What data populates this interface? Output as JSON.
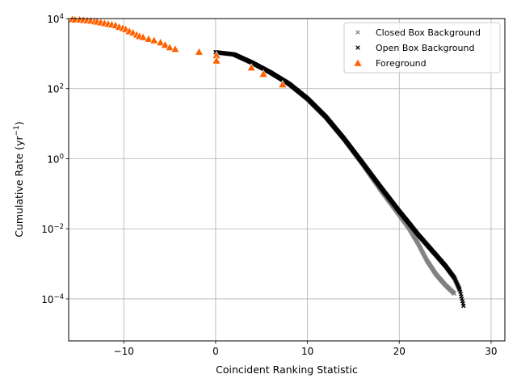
{
  "chart_data": {
    "type": "scatter",
    "title": "",
    "xlabel": "Coincident Ranking Statistic",
    "ylabel_main": "Cumulative Rate (yr",
    "ylabel_sup": "−1",
    "ylabel_close": ")",
    "xlim": [
      -16,
      31.5
    ],
    "ylog": true,
    "ylim_log10": [
      -5.2,
      4
    ],
    "grid": true,
    "legend_position": "top-right",
    "x_ticks": [
      {
        "value": -10,
        "label": "−10"
      },
      {
        "value": 0,
        "label": "0"
      },
      {
        "value": 10,
        "label": "10"
      },
      {
        "value": 20,
        "label": "20"
      },
      {
        "value": 30,
        "label": "30"
      }
    ],
    "y_ticks": [
      {
        "exp": 4,
        "base": "10",
        "sup": "4"
      },
      {
        "exp": 2,
        "base": "10",
        "sup": "2"
      },
      {
        "exp": 0,
        "base": "10",
        "sup": "0"
      },
      {
        "exp": -2,
        "base": "10",
        "sup": "−2"
      },
      {
        "exp": -4,
        "base": "10",
        "sup": "−4"
      }
    ],
    "series": [
      {
        "name": "Closed Box Background",
        "marker": "x",
        "color": "#808080",
        "curve": [
          [
            0,
            3.03
          ],
          [
            2,
            2.97
          ],
          [
            4,
            2.73
          ],
          [
            6,
            2.45
          ],
          [
            8,
            2.13
          ],
          [
            10,
            1.7
          ],
          [
            12,
            1.18
          ],
          [
            14,
            0.55
          ],
          [
            16,
            -0.15
          ],
          [
            18,
            -0.9
          ],
          [
            20,
            -1.6
          ],
          [
            21,
            -1.96
          ],
          [
            22,
            -2.4
          ],
          [
            23,
            -2.9
          ],
          [
            24,
            -3.3
          ],
          [
            25,
            -3.6
          ],
          [
            26,
            -3.85
          ]
        ]
      },
      {
        "name": "Open Box Background",
        "marker": "x",
        "color": "#000000",
        "curve": [
          [
            0,
            3.04
          ],
          [
            2,
            2.98
          ],
          [
            4,
            2.74
          ],
          [
            6,
            2.46
          ],
          [
            8,
            2.14
          ],
          [
            10,
            1.72
          ],
          [
            12,
            1.2
          ],
          [
            14,
            0.57
          ],
          [
            16,
            -0.12
          ],
          [
            18,
            -0.82
          ],
          [
            20,
            -1.5
          ],
          [
            21,
            -1.82
          ],
          [
            22,
            -2.15
          ],
          [
            23,
            -2.45
          ],
          [
            24,
            -2.75
          ],
          [
            25,
            -3.05
          ],
          [
            26,
            -3.4
          ],
          [
            26.6,
            -3.75
          ],
          [
            27,
            -4.2
          ]
        ]
      },
      {
        "name": "Foreground",
        "marker": "triangle",
        "color": "#ff6000",
        "edge": "#ffffff",
        "points": [
          [
            -15.6,
            3.98
          ],
          [
            -15.3,
            3.97
          ],
          [
            -14.8,
            3.97
          ],
          [
            -14.4,
            3.96
          ],
          [
            -14.0,
            3.95
          ],
          [
            -13.6,
            3.94
          ],
          [
            -13.2,
            3.92
          ],
          [
            -12.9,
            3.91
          ],
          [
            -12.5,
            3.89
          ],
          [
            -12.1,
            3.87
          ],
          [
            -11.7,
            3.85
          ],
          [
            -11.3,
            3.83
          ],
          [
            -10.9,
            3.81
          ],
          [
            -10.5,
            3.76
          ],
          [
            -10.1,
            3.73
          ],
          [
            -9.8,
            3.7
          ],
          [
            -9.4,
            3.64
          ],
          [
            -9.0,
            3.6
          ],
          [
            -8.6,
            3.54
          ],
          [
            -8.3,
            3.5
          ],
          [
            -7.9,
            3.47
          ],
          [
            -7.3,
            3.42
          ],
          [
            -6.7,
            3.38
          ],
          [
            -6.0,
            3.32
          ],
          [
            -5.5,
            3.25
          ],
          [
            -5.0,
            3.18
          ],
          [
            -4.4,
            3.13
          ],
          [
            -1.8,
            3.05
          ],
          [
            0.1,
            2.95
          ],
          [
            0.1,
            2.8
          ],
          [
            3.9,
            2.6
          ],
          [
            5.2,
            2.42
          ],
          [
            7.3,
            2.12
          ]
        ]
      }
    ]
  }
}
